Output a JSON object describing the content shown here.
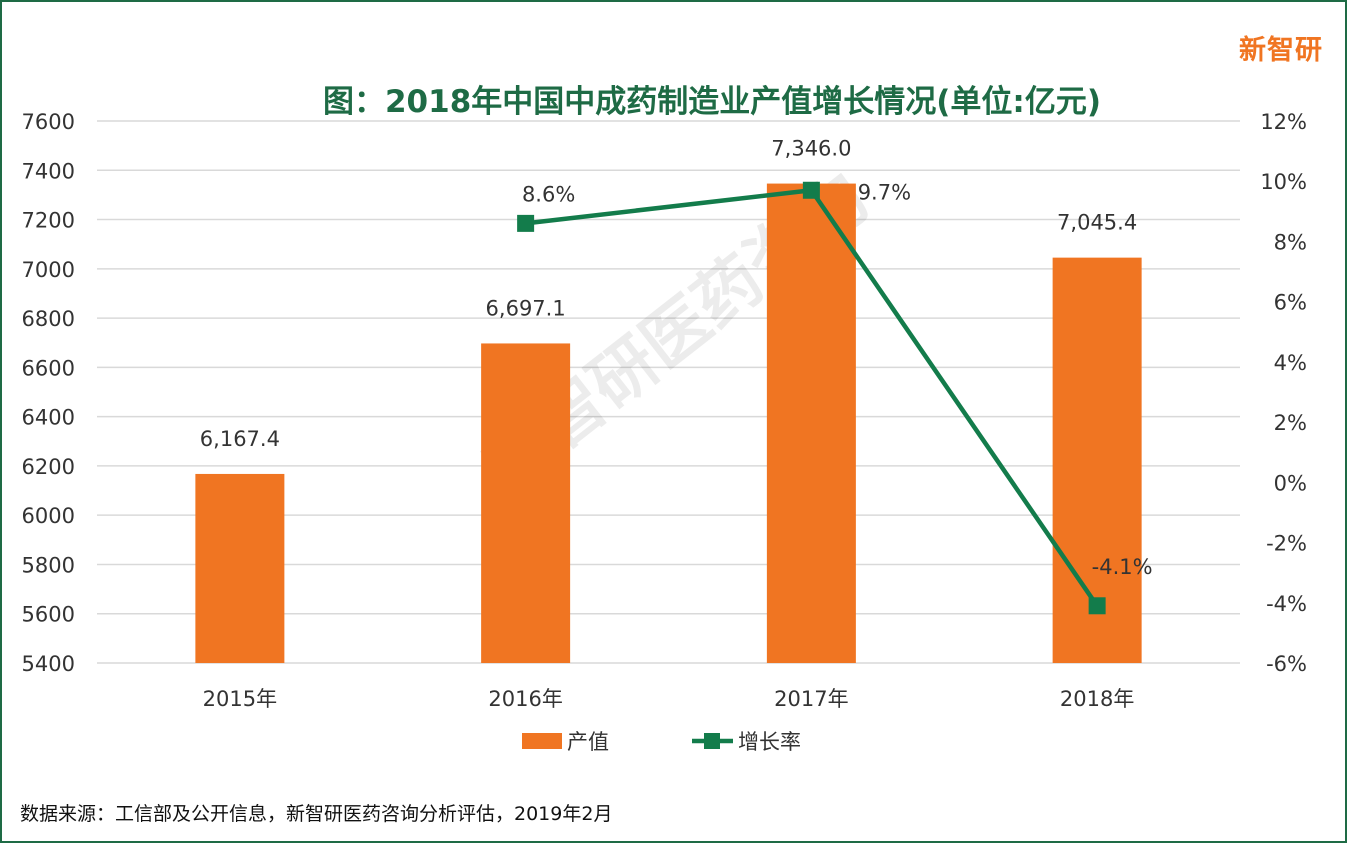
{
  "brand": "新智研",
  "watermark": "新智研医药咨询",
  "source_note": "数据来源：工信部及公开信息，新智研医药咨询分析评估，2019年2月",
  "chart_data": {
    "type": "bar",
    "title": "图：2018年中国中成药制造业产值增长情况(单位:亿元)",
    "categories": [
      "2015年",
      "2016年",
      "2017年",
      "2018年"
    ],
    "series": [
      {
        "name": "产值",
        "type": "bar",
        "axis": "left",
        "color": "#f07522",
        "values": [
          6167.4,
          6697.1,
          7346.0,
          7045.4
        ],
        "labels": [
          "6,167.4",
          "6,697.1",
          "7,346.0",
          "7,045.4"
        ]
      },
      {
        "name": "增长率",
        "type": "line",
        "axis": "right",
        "color": "#137c4b",
        "values": [
          null,
          8.6,
          9.7,
          -4.1
        ],
        "labels": [
          "",
          "8.6%",
          "9.7%",
          "-4.1%"
        ]
      }
    ],
    "y_left": {
      "min": 5400,
      "max": 7600,
      "ticks": [
        "7600",
        "7400",
        "7200",
        "7000",
        "6800",
        "6600",
        "6400",
        "6200",
        "6000",
        "5800",
        "5600",
        "5400"
      ]
    },
    "y_right": {
      "min": -6,
      "max": 12,
      "ticks": [
        "12%",
        "10%",
        "8%",
        "6%",
        "4%",
        "2%",
        "0%",
        "-2%",
        "-4%",
        "-6%"
      ]
    },
    "grid": true,
    "legend_position": "bottom"
  }
}
